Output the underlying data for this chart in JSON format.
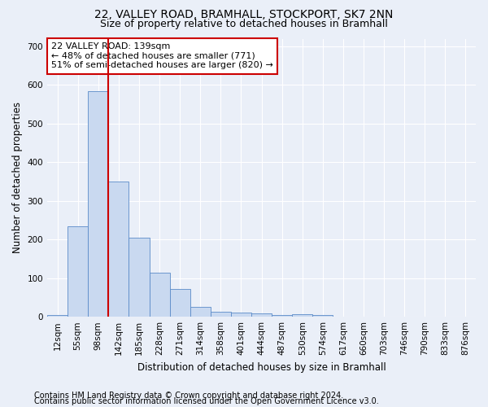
{
  "title": "22, VALLEY ROAD, BRAMHALL, STOCKPORT, SK7 2NN",
  "subtitle": "Size of property relative to detached houses in Bramhall",
  "xlabel": "Distribution of detached houses by size in Bramhall",
  "ylabel": "Number of detached properties",
  "bar_labels": [
    "12sqm",
    "55sqm",
    "98sqm",
    "142sqm",
    "185sqm",
    "228sqm",
    "271sqm",
    "314sqm",
    "358sqm",
    "401sqm",
    "444sqm",
    "487sqm",
    "530sqm",
    "574sqm",
    "617sqm",
    "660sqm",
    "703sqm",
    "746sqm",
    "790sqm",
    "833sqm",
    "876sqm"
  ],
  "bar_heights": [
    5,
    235,
    585,
    350,
    205,
    115,
    73,
    25,
    13,
    10,
    8,
    5,
    6,
    5,
    0,
    0,
    0,
    0,
    0,
    0,
    0
  ],
  "bar_color": "#c9d9f0",
  "bar_edge_color": "#5b8bc9",
  "vline_x_index": 2.5,
  "vline_color": "#cc0000",
  "annotation_text": "22 VALLEY ROAD: 139sqm\n← 48% of detached houses are smaller (771)\n51% of semi-detached houses are larger (820) →",
  "annotation_box_color": "#ffffff",
  "annotation_edge_color": "#cc0000",
  "ylim": [
    0,
    720
  ],
  "yticks": [
    0,
    100,
    200,
    300,
    400,
    500,
    600,
    700
  ],
  "footer_line1": "Contains HM Land Registry data © Crown copyright and database right 2024.",
  "footer_line2": "Contains public sector information licensed under the Open Government Licence v3.0.",
  "background_color": "#eaeff8",
  "plot_bg_color": "#eaeff8",
  "grid_color": "#ffffff",
  "title_fontsize": 10,
  "subtitle_fontsize": 9,
  "axis_label_fontsize": 8.5,
  "tick_fontsize": 7.5,
  "annotation_fontsize": 8,
  "footer_fontsize": 7
}
